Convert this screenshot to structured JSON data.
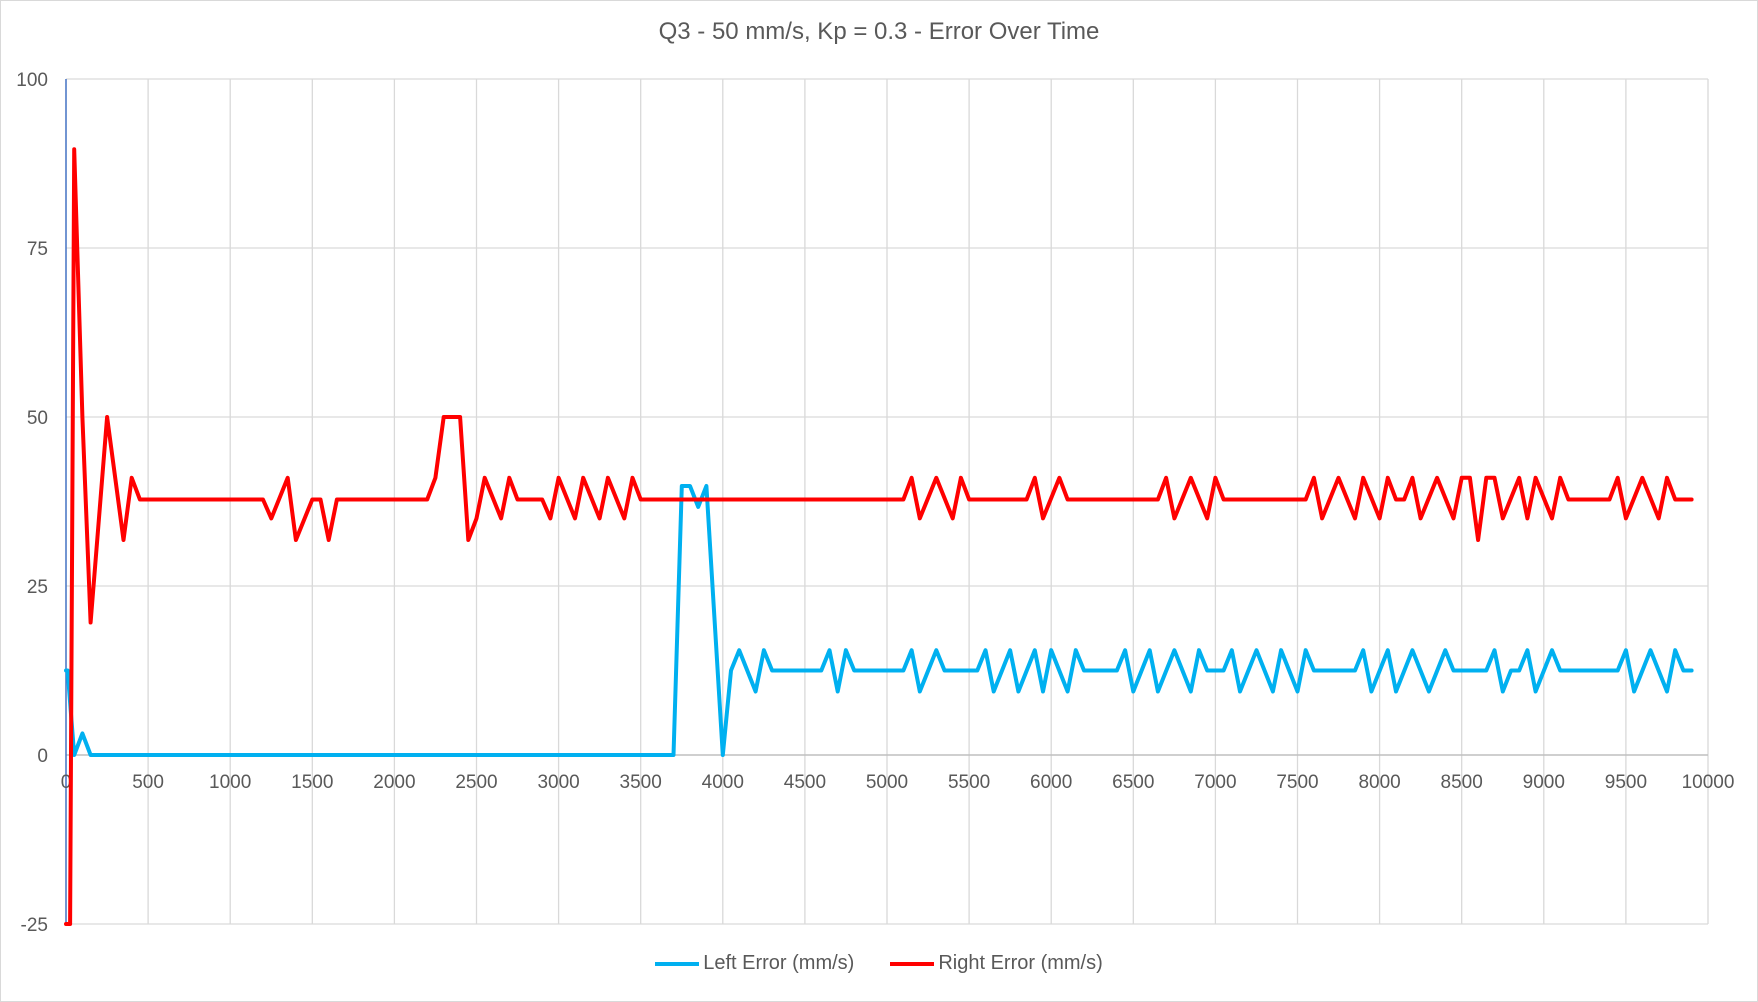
{
  "chart_data": {
    "type": "line",
    "title": "Q3 - 50 mm/s, Kp = 0.3 - Error Over Time",
    "xlabel": "",
    "ylabel": "",
    "xlim": [
      0,
      10000
    ],
    "ylim": [
      -25,
      100
    ],
    "x_ticks": [
      0,
      500,
      1000,
      1500,
      2000,
      2500,
      3000,
      3500,
      4000,
      4500,
      5000,
      5500,
      6000,
      6500,
      7000,
      7500,
      8000,
      8500,
      9000,
      9500,
      10000
    ],
    "x_tick_labels": [
      "0",
      "500",
      "1000",
      "1500",
      "2000",
      "2500",
      "3000",
      "3500",
      "4000",
      "4500",
      "5000",
      "5500",
      "6000",
      "6500",
      "7000",
      "7500",
      "8000",
      "8500",
      "9000",
      "9500",
      "10000"
    ],
    "y_ticks": [
      -25,
      0,
      25,
      50,
      75,
      100
    ],
    "y_tick_labels": [
      "-25",
      "0",
      "25",
      "50",
      "75",
      "100"
    ],
    "grid": true,
    "legend_position": "bottom",
    "series": [
      {
        "name": "Left Error (mm/s)",
        "color": "#00b0f0",
        "points": [
          [
            0,
            12.5
          ],
          [
            10,
            12.5
          ],
          [
            50,
            0
          ],
          [
            100,
            3.2
          ],
          [
            150,
            0
          ],
          [
            3700,
            0
          ],
          [
            3750,
            39.8
          ],
          [
            3800,
            39.8
          ],
          [
            3850,
            36.7
          ],
          [
            3900,
            39.8
          ],
          [
            4000,
            0
          ],
          [
            4050,
            12.5
          ],
          [
            4100,
            15.5
          ],
          [
            4200,
            9.4
          ],
          [
            4250,
            15.5
          ],
          [
            4300,
            12.5
          ],
          [
            4600,
            12.5
          ],
          [
            4650,
            15.5
          ],
          [
            4700,
            9.4
          ],
          [
            4750,
            15.5
          ],
          [
            4800,
            12.5
          ],
          [
            5100,
            12.5
          ],
          [
            5150,
            15.5
          ],
          [
            5200,
            9.4
          ],
          [
            5300,
            15.5
          ],
          [
            5350,
            12.5
          ],
          [
            5550,
            12.5
          ],
          [
            5600,
            15.5
          ],
          [
            5650,
            9.4
          ],
          [
            5750,
            15.5
          ],
          [
            5800,
            9.4
          ],
          [
            5900,
            15.5
          ],
          [
            5950,
            9.4
          ],
          [
            6000,
            15.5
          ],
          [
            6100,
            9.4
          ],
          [
            6150,
            15.5
          ],
          [
            6200,
            12.5
          ],
          [
            6400,
            12.5
          ],
          [
            6450,
            15.5
          ],
          [
            6500,
            9.4
          ],
          [
            6600,
            15.5
          ],
          [
            6650,
            9.4
          ],
          [
            6750,
            15.5
          ],
          [
            6850,
            9.4
          ],
          [
            6900,
            15.5
          ],
          [
            6950,
            12.5
          ],
          [
            7050,
            12.5
          ],
          [
            7100,
            15.5
          ],
          [
            7150,
            9.4
          ],
          [
            7250,
            15.5
          ],
          [
            7350,
            9.4
          ],
          [
            7400,
            15.5
          ],
          [
            7500,
            9.4
          ],
          [
            7550,
            15.5
          ],
          [
            7600,
            12.5
          ],
          [
            7850,
            12.5
          ],
          [
            7900,
            15.5
          ],
          [
            7950,
            9.4
          ],
          [
            8050,
            15.5
          ],
          [
            8100,
            9.4
          ],
          [
            8200,
            15.5
          ],
          [
            8300,
            9.4
          ],
          [
            8400,
            15.5
          ],
          [
            8450,
            12.5
          ],
          [
            8650,
            12.5
          ],
          [
            8700,
            15.5
          ],
          [
            8750,
            9.4
          ],
          [
            8800,
            12.5
          ],
          [
            8850,
            12.5
          ],
          [
            8900,
            15.5
          ],
          [
            8950,
            9.4
          ],
          [
            9050,
            15.5
          ],
          [
            9100,
            12.5
          ],
          [
            9450,
            12.5
          ],
          [
            9500,
            15.5
          ],
          [
            9550,
            9.4
          ],
          [
            9650,
            15.5
          ],
          [
            9750,
            9.4
          ],
          [
            9800,
            15.5
          ],
          [
            9850,
            12.5
          ],
          [
            9900,
            12.5
          ]
        ]
      },
      {
        "name": "Right Error (mm/s)",
        "color": "#ff0000",
        "points": [
          [
            0,
            -25
          ],
          [
            25,
            -25
          ],
          [
            50,
            89.6
          ],
          [
            100,
            50
          ],
          [
            150,
            19.6
          ],
          [
            250,
            50
          ],
          [
            350,
            31.8
          ],
          [
            400,
            41
          ],
          [
            450,
            37.8
          ],
          [
            1200,
            37.8
          ],
          [
            1250,
            35
          ],
          [
            1350,
            41
          ],
          [
            1400,
            31.8
          ],
          [
            1500,
            37.8
          ],
          [
            1550,
            37.8
          ],
          [
            1600,
            31.8
          ],
          [
            1650,
            37.8
          ],
          [
            2200,
            37.8
          ],
          [
            2250,
            41
          ],
          [
            2300,
            50
          ],
          [
            2400,
            50
          ],
          [
            2450,
            31.8
          ],
          [
            2500,
            35
          ],
          [
            2550,
            41
          ],
          [
            2650,
            35
          ],
          [
            2700,
            41
          ],
          [
            2750,
            37.8
          ],
          [
            2900,
            37.8
          ],
          [
            2950,
            35
          ],
          [
            3000,
            41
          ],
          [
            3100,
            35
          ],
          [
            3150,
            41
          ],
          [
            3250,
            35
          ],
          [
            3300,
            41
          ],
          [
            3400,
            35
          ],
          [
            3450,
            41
          ],
          [
            3500,
            37.8
          ],
          [
            5100,
            37.8
          ],
          [
            5150,
            41
          ],
          [
            5200,
            35
          ],
          [
            5300,
            41
          ],
          [
            5400,
            35
          ],
          [
            5450,
            41
          ],
          [
            5500,
            37.8
          ],
          [
            5850,
            37.8
          ],
          [
            5900,
            41
          ],
          [
            5950,
            35
          ],
          [
            6050,
            41
          ],
          [
            6100,
            37.8
          ],
          [
            6650,
            37.8
          ],
          [
            6700,
            41
          ],
          [
            6750,
            35
          ],
          [
            6850,
            41
          ],
          [
            6950,
            35
          ],
          [
            7000,
            41
          ],
          [
            7050,
            37.8
          ],
          [
            7550,
            37.8
          ],
          [
            7600,
            41
          ],
          [
            7650,
            35
          ],
          [
            7750,
            41
          ],
          [
            7850,
            35
          ],
          [
            7900,
            41
          ],
          [
            8000,
            35
          ],
          [
            8050,
            41
          ],
          [
            8100,
            37.8
          ],
          [
            8150,
            37.8
          ],
          [
            8200,
            41
          ],
          [
            8250,
            35
          ],
          [
            8350,
            41
          ],
          [
            8450,
            35
          ],
          [
            8500,
            41
          ],
          [
            8550,
            41
          ],
          [
            8600,
            31.8
          ],
          [
            8650,
            41
          ],
          [
            8700,
            41
          ],
          [
            8750,
            35
          ],
          [
            8850,
            41
          ],
          [
            8900,
            35
          ],
          [
            8950,
            41
          ],
          [
            9050,
            35
          ],
          [
            9100,
            41
          ],
          [
            9150,
            37.8
          ],
          [
            9400,
            37.8
          ],
          [
            9450,
            41
          ],
          [
            9500,
            35
          ],
          [
            9600,
            41
          ],
          [
            9700,
            35
          ],
          [
            9750,
            41
          ],
          [
            9800,
            37.8
          ],
          [
            9900,
            37.8
          ]
        ]
      }
    ]
  }
}
